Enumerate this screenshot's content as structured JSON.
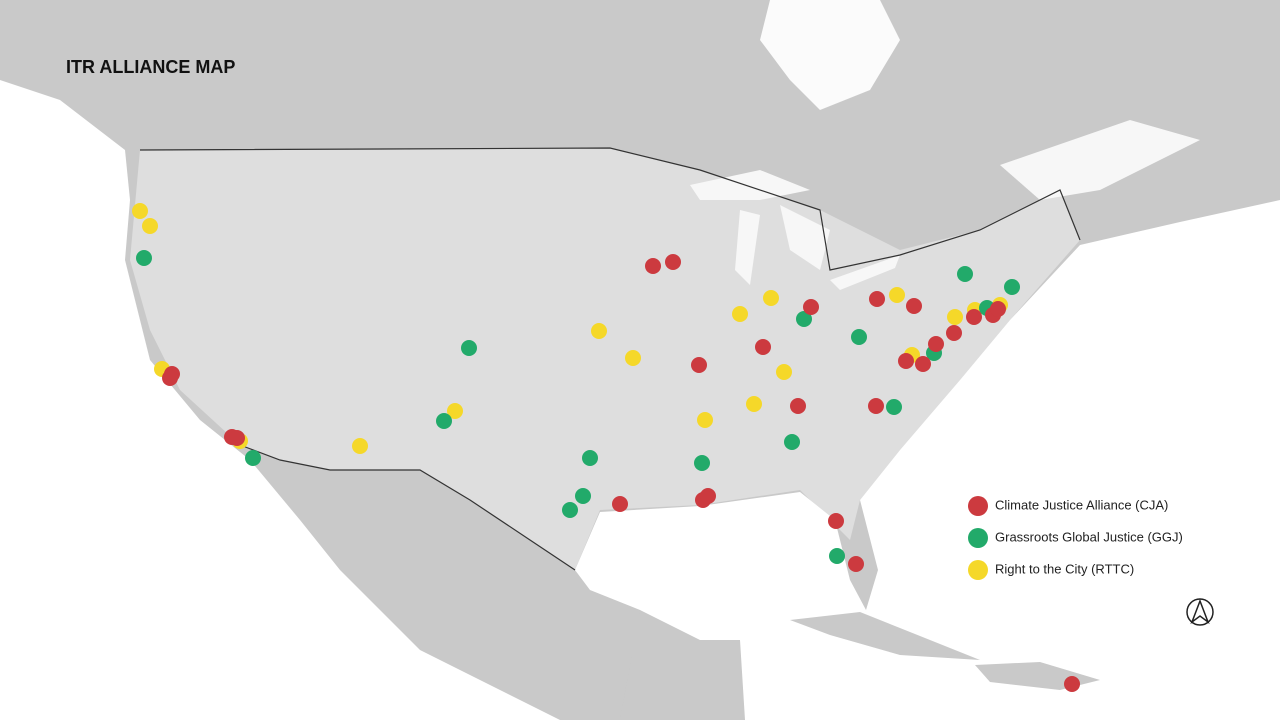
{
  "title": "ITR ALLIANCE MAP",
  "legend": [
    {
      "label": "Climate Justice Alliance (CJA)",
      "color": "#cc3a3f"
    },
    {
      "label": "Grassroots Global Justice (GGJ)",
      "color": "#22aa6a"
    },
    {
      "label": "Right to the City (RTTC)",
      "color": "#f5d829"
    }
  ]
}
